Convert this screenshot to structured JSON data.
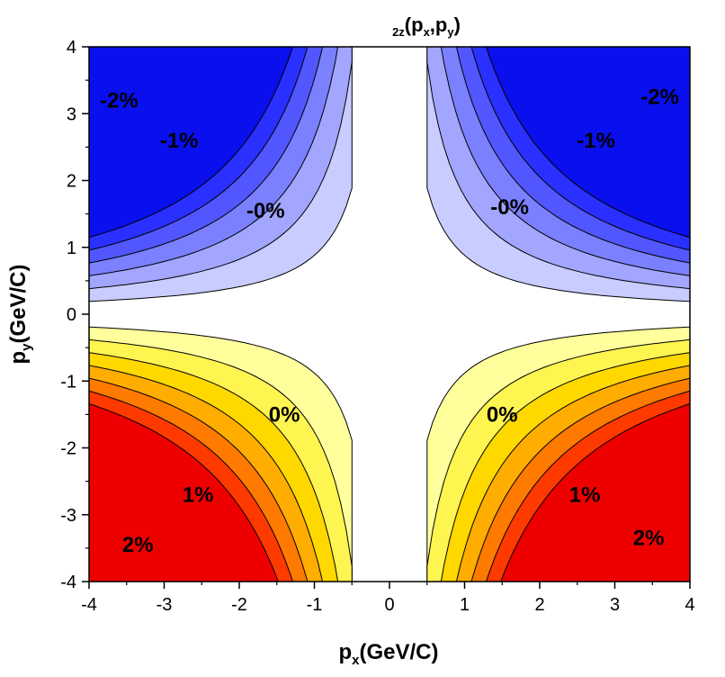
{
  "chart_data": {
    "type": "contour",
    "title": {
      "prefix": "2z",
      "main": "(p",
      "sub1": "x",
      "mid": ",p",
      "sub2": "y",
      "end": ")"
    },
    "xlabel": {
      "main": "p",
      "sub": "x",
      "rest": "(GeV/C)"
    },
    "ylabel": {
      "main": "p",
      "sub": "y",
      "rest": "(GeV/C)"
    },
    "xlim": [
      -4,
      4
    ],
    "ylim": [
      -4,
      4
    ],
    "x_ticks": [
      -4,
      -3,
      -2,
      -1,
      0,
      1,
      2,
      3,
      4
    ],
    "y_ticks": [
      -4,
      -3,
      -2,
      -1,
      0,
      1,
      2,
      3,
      4
    ],
    "x_tick_labels": [
      "-4",
      "-3",
      "-2",
      "-1",
      "0",
      "1",
      "2",
      "3",
      "4"
    ],
    "y_tick_labels": [
      "-4",
      "-3",
      "-2",
      "-1",
      "0",
      "1",
      "2",
      "3",
      "4"
    ],
    "contour_labels": [
      {
        "text": "-2%",
        "x": -3.6,
        "y": 3.2
      },
      {
        "text": "-1%",
        "x": -2.8,
        "y": 2.6
      },
      {
        "text": "-0%",
        "x": -1.65,
        "y": 1.55
      },
      {
        "text": "-0%",
        "x": 1.6,
        "y": 1.6
      },
      {
        "text": "-1%",
        "x": 2.75,
        "y": 2.6
      },
      {
        "text": "-2%",
        "x": 3.6,
        "y": 3.25
      },
      {
        "text": "0%",
        "x": -1.4,
        "y": -1.5
      },
      {
        "text": "0%",
        "x": 1.5,
        "y": -1.5
      },
      {
        "text": "1%",
        "x": -2.55,
        "y": -2.7
      },
      {
        "text": "1%",
        "x": 2.6,
        "y": -2.7
      },
      {
        "text": "2%",
        "x": -3.35,
        "y": -3.45
      },
      {
        "text": "2%",
        "x": 3.45,
        "y": -3.35
      }
    ],
    "colors": {
      "negative": [
        "#c9ccff",
        "#a2a6ff",
        "#7b80ff",
        "#5156ff",
        "#2a30ff",
        "#0a0fee"
      ],
      "positive": [
        "#ffff9c",
        "#fff550",
        "#ffd800",
        "#ffad00",
        "#ff7a00",
        "#ff3a00",
        "#ee0000"
      ]
    }
  }
}
